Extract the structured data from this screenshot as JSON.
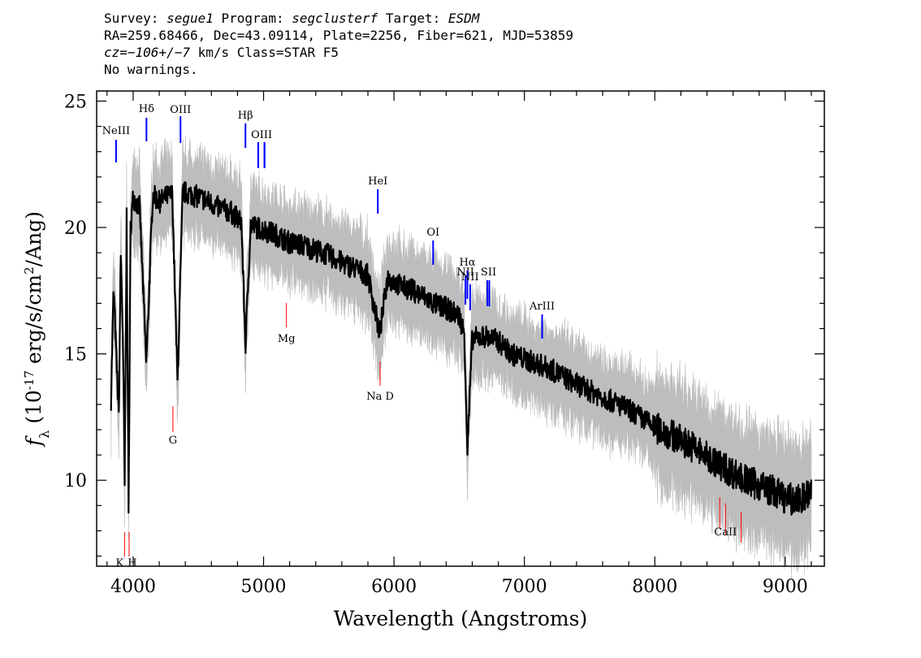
{
  "header": {
    "survey_label": "Survey:",
    "survey": "segue1",
    "program_label": "Program:",
    "program": "segclusterf",
    "target_label": "Target:",
    "target": "ESDM",
    "line2": "RA=259.68466, Dec=43.09114, Plate=2256, Fiber=621, MJD=53859",
    "cz_label": "cz=",
    "cz": "−106+/−7",
    "cz_units": " km/s Class=STAR F5",
    "warnings": "No warnings."
  },
  "colors": {
    "flux": "#000000",
    "error": "#bdbdbd",
    "emission": "#0000ff",
    "absorption": "#ff0000"
  },
  "chart_data": {
    "type": "line",
    "xlabel": "Wavelength (Angstroms)",
    "ylabel": "f_λ (10^-17 erg/s/cm^2/Ang)",
    "xlim": [
      3720,
      9300
    ],
    "ylim": [
      6.6,
      25.4
    ],
    "xticks": [
      4000,
      5000,
      6000,
      7000,
      8000,
      9000
    ],
    "yticks": [
      10,
      15,
      20,
      25
    ],
    "series": [
      {
        "x": [
          3830,
          3850,
          3870,
          3890,
          3905,
          3920,
          3935,
          3950,
          3965,
          3980,
          4000,
          4050,
          4101,
          4150,
          4200,
          4250,
          4300,
          4340,
          4380,
          4450,
          4550,
          4650,
          4750,
          4830,
          4861,
          4900,
          5000,
          5100,
          5200,
          5300,
          5400,
          5500,
          5600,
          5700,
          5800,
          5890,
          5950,
          6050,
          6150,
          6250,
          6300,
          6400,
          6500,
          6540,
          6563,
          6600,
          6700,
          6800,
          6900,
          7000,
          7200,
          7400,
          7600,
          7800,
          8000,
          8200,
          8300,
          8400,
          8500,
          8600,
          8700,
          8800,
          8900,
          9000,
          9100,
          9200
        ],
        "y": [
          13.2,
          17.6,
          15.0,
          12.5,
          19.0,
          16.0,
          9.8,
          20.5,
          8.6,
          20.0,
          21.2,
          20.8,
          14.6,
          21.3,
          21.0,
          21.2,
          21.3,
          13.8,
          21.4,
          21.3,
          21.1,
          20.8,
          20.6,
          20.2,
          15.3,
          20.1,
          19.9,
          19.7,
          19.4,
          19.3,
          19.1,
          18.9,
          18.6,
          18.4,
          18.1,
          15.8,
          18.0,
          17.7,
          17.5,
          17.2,
          17.0,
          16.8,
          16.5,
          15.8,
          11.2,
          15.6,
          15.7,
          15.5,
          15.0,
          14.8,
          14.4,
          13.8,
          13.3,
          12.8,
          12.1,
          11.6,
          11.3,
          10.9,
          10.6,
          10.3,
          10.0,
          9.8,
          9.6,
          9.3,
          9.2,
          9.5
        ]
      }
    ],
    "line_labels": [
      {
        "name": "NeIII",
        "wave": 3869,
        "kind": "emission"
      },
      {
        "name": "Hδ",
        "wave": 4102,
        "kind": "emission"
      },
      {
        "name": "OIII",
        "wave": 4363,
        "kind": "emission"
      },
      {
        "name": "Hβ",
        "wave": 4861,
        "kind": "emission"
      },
      {
        "name": "OIII",
        "wave": 4985,
        "kind": "emission"
      },
      {
        "name": "HeI",
        "wave": 5876,
        "kind": "emission"
      },
      {
        "name": "OI",
        "wave": 6300,
        "kind": "emission"
      },
      {
        "name": "NII",
        "wave": 6548,
        "kind": "emission"
      },
      {
        "name": "Hα",
        "wave": 6563,
        "kind": "emission"
      },
      {
        "name": "NII",
        "wave": 6584,
        "kind": "emission"
      },
      {
        "name": "SII",
        "wave": 6725,
        "kind": "emission"
      },
      {
        "name": "ArIII",
        "wave": 7136,
        "kind": "emission"
      },
      {
        "name": "K",
        "wave": 3934,
        "kind": "absorption"
      },
      {
        "name": "H",
        "wave": 3969,
        "kind": "absorption"
      },
      {
        "name": "G",
        "wave": 4305,
        "kind": "absorption"
      },
      {
        "name": "Mg",
        "wave": 5175,
        "kind": "absorption"
      },
      {
        "name": "Na D",
        "wave": 5894,
        "kind": "absorption"
      },
      {
        "name": "CaII",
        "wave": 8542,
        "kind": "absorption"
      }
    ]
  }
}
